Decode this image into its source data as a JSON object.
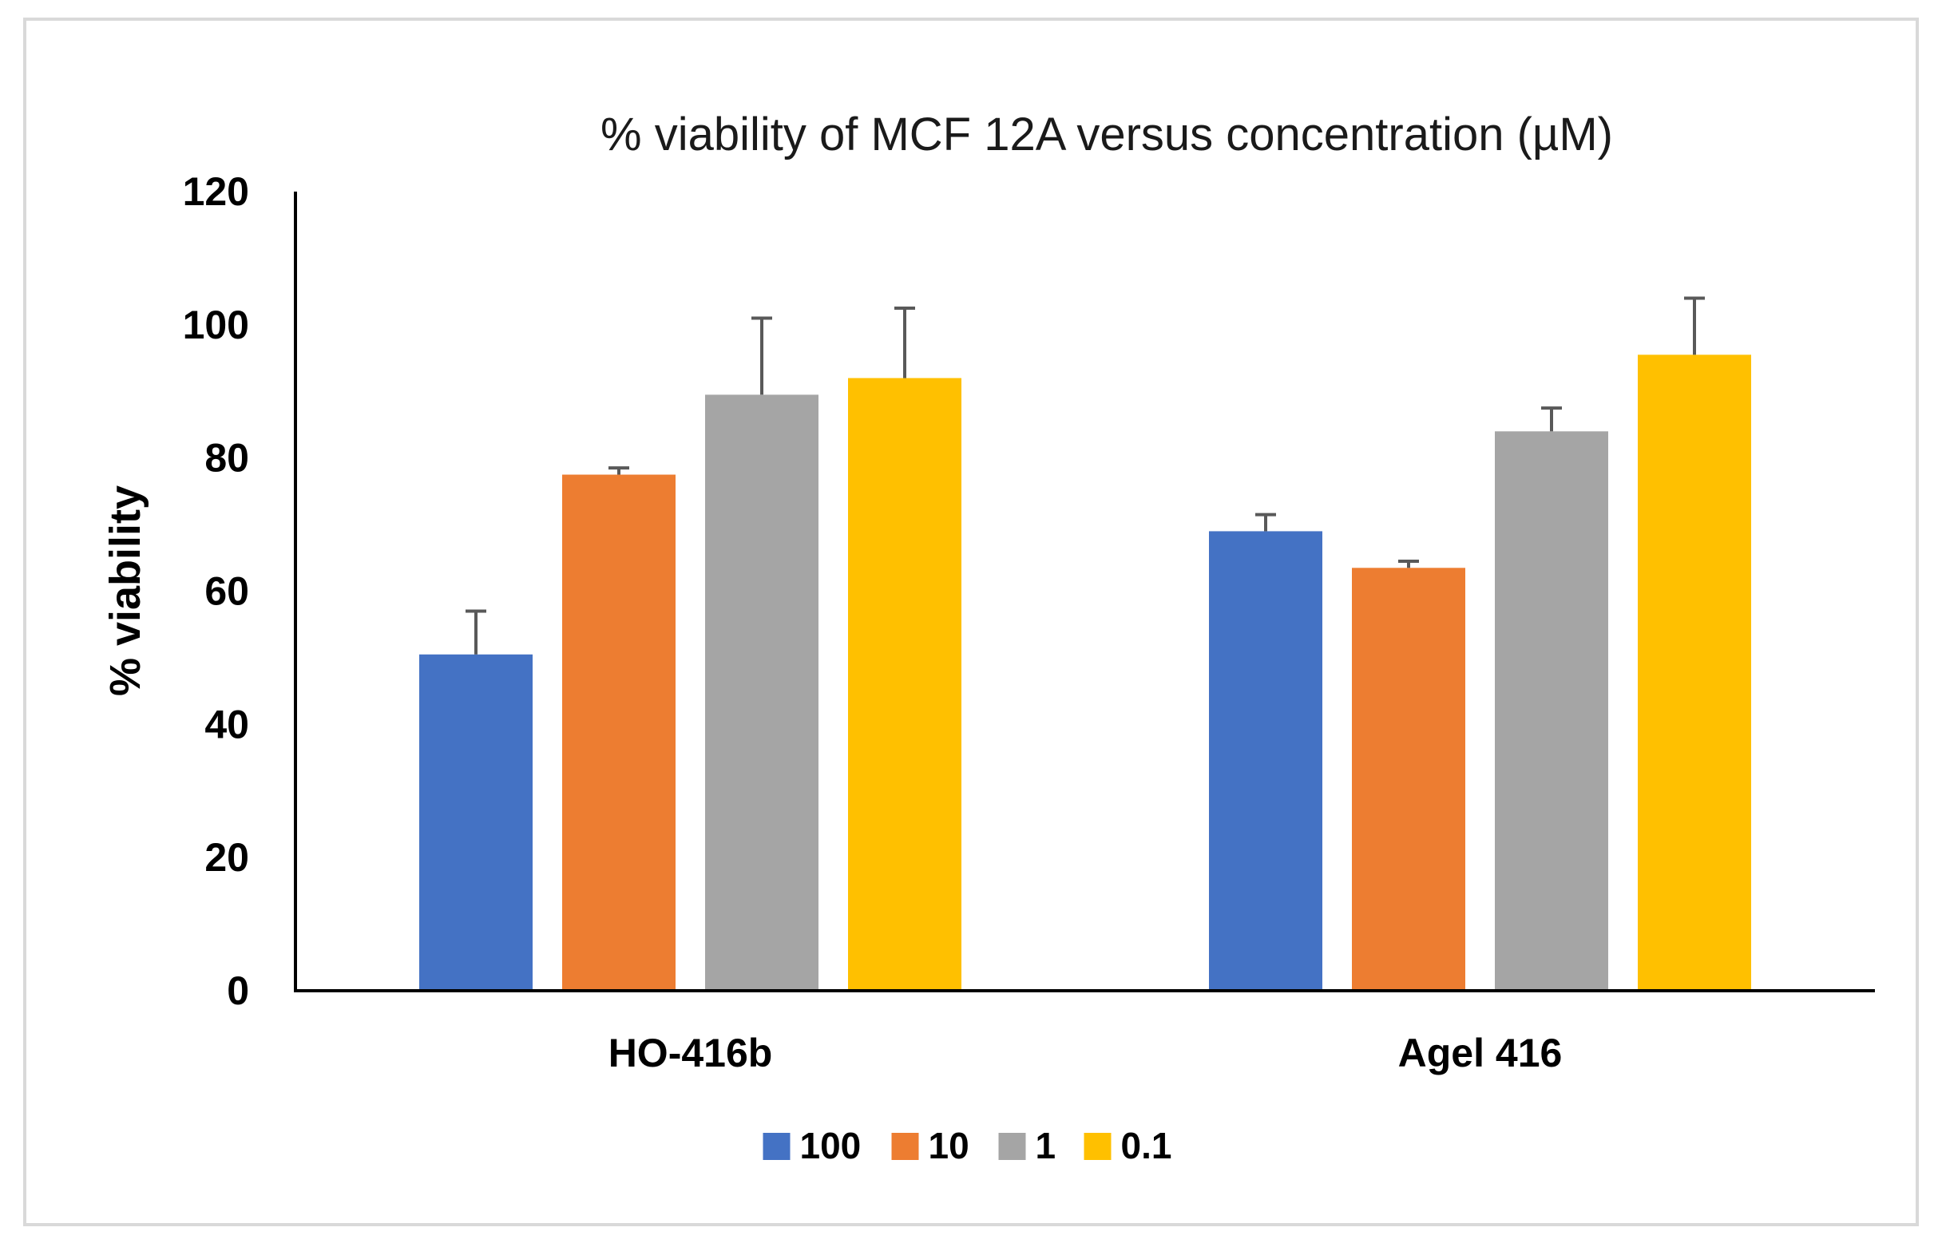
{
  "chart_data": {
    "type": "bar",
    "title": "% viability of MCF 12A versus concentration (µM)",
    "xlabel": "",
    "ylabel": "% viability",
    "ylim": [
      0,
      120
    ],
    "yticks": [
      0,
      20,
      40,
      60,
      80,
      100,
      120
    ],
    "grid": false,
    "legend_position": "bottom",
    "categories": [
      "HO-416b",
      "Agel 416"
    ],
    "series": [
      {
        "name": "100",
        "color": "#4472C4",
        "values": [
          50.5,
          69
        ],
        "errors": [
          6.5,
          2.5
        ]
      },
      {
        "name": "10",
        "color": "#ED7D31",
        "values": [
          77.5,
          63.5
        ],
        "errors": [
          1.0,
          1.0
        ]
      },
      {
        "name": "1",
        "color": "#A5A5A5",
        "values": [
          89.5,
          84
        ],
        "errors": [
          11.5,
          3.5
        ]
      },
      {
        "name": "0.1",
        "color": "#FFC000",
        "values": [
          92,
          95.5
        ],
        "errors": [
          10.5,
          8.5
        ]
      }
    ],
    "error_bar_color": "#595959",
    "axis_color": "#000000"
  }
}
